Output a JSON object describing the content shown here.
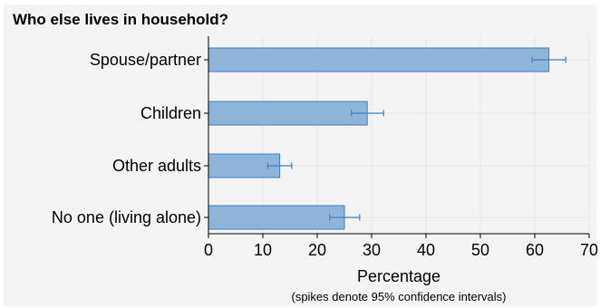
{
  "chart_data": {
    "type": "bar",
    "orientation": "horizontal",
    "title": "Who else lives in household?",
    "xlabel": "Percentage",
    "xlabel_note": "(spikes denote 95% confidence intervals)",
    "xlim": [
      0,
      70
    ],
    "xticks": [
      0,
      10,
      20,
      30,
      40,
      50,
      60,
      70
    ],
    "categories": [
      "Spouse/partner",
      "Children",
      "Other adults",
      "No one (living alone)"
    ],
    "values": [
      62.6,
      29.2,
      13.1,
      25.0
    ],
    "ci_low": [
      59.5,
      26.3,
      10.9,
      22.3
    ],
    "ci_high": [
      65.7,
      32.2,
      15.3,
      27.8
    ],
    "grid": true,
    "legend": "none",
    "colors": {
      "bar_fill": "#8fb4d9",
      "bar_stroke": "#3f7fc0",
      "error_bar": "#3f7fc0",
      "panel_bg": "#f4f4f4",
      "grid": "#e6e6e6"
    }
  }
}
